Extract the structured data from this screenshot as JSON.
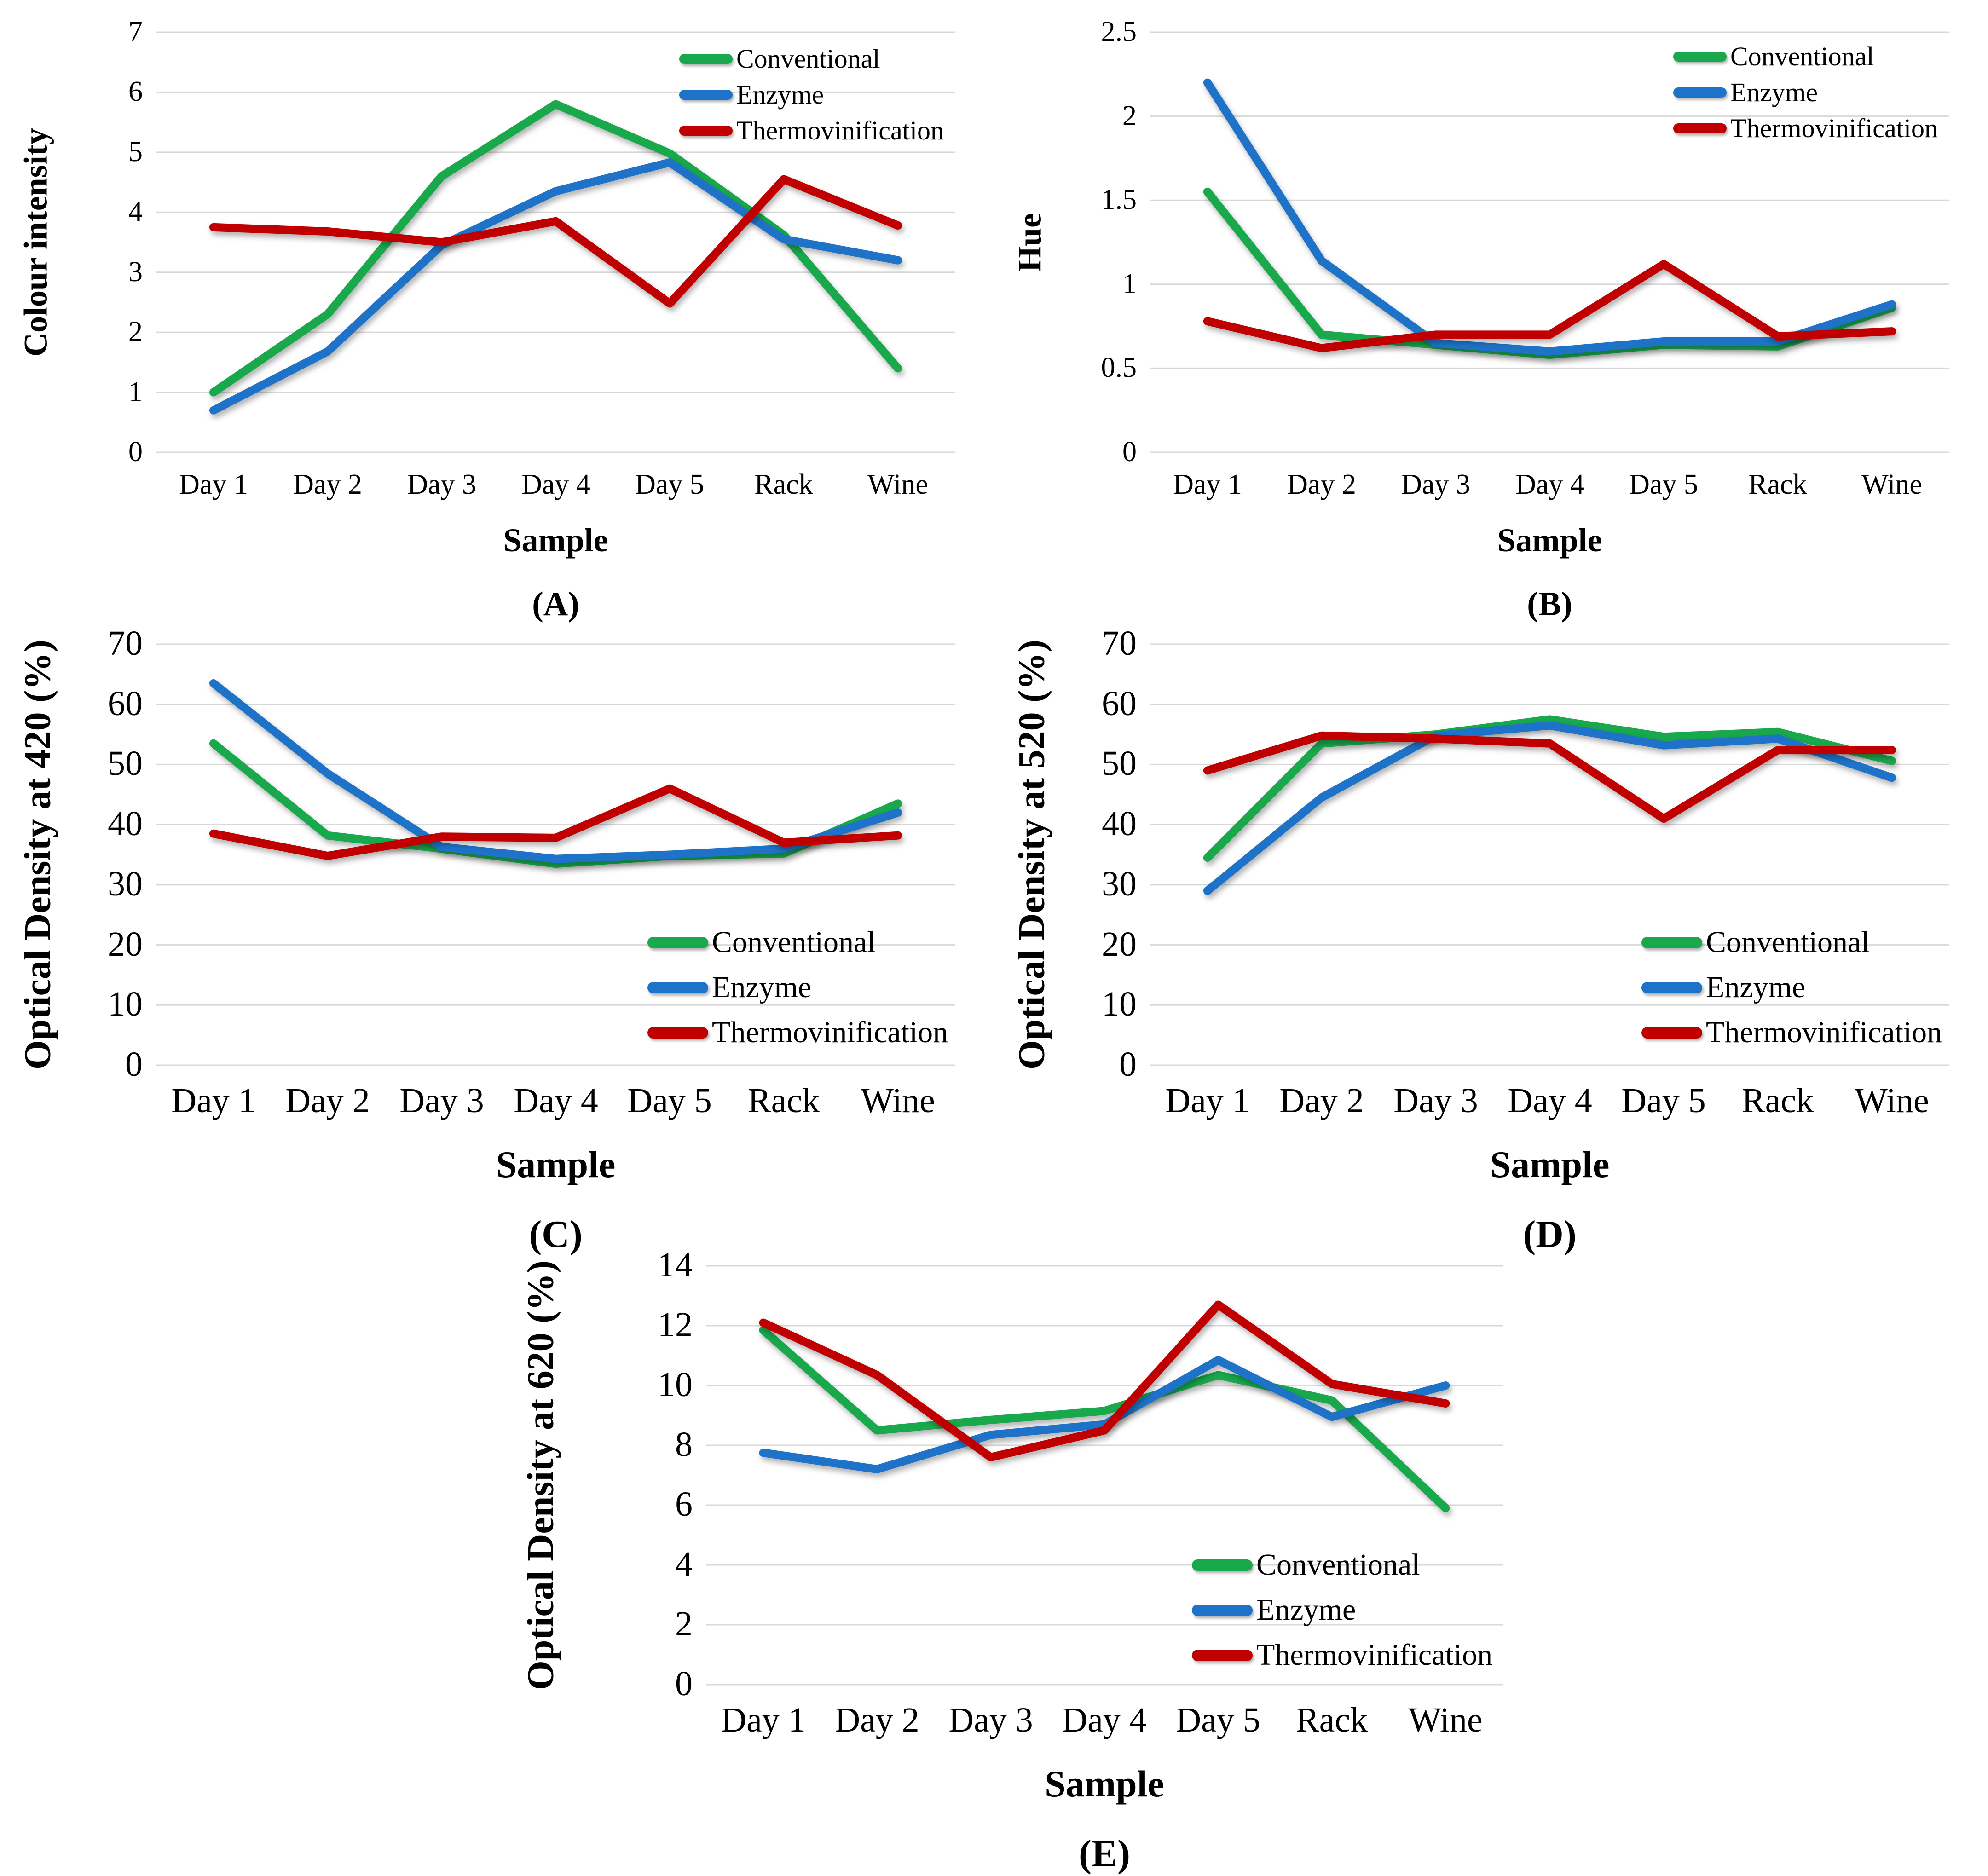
{
  "figure": {
    "type": "five-panel line figure",
    "background": "#ffffff",
    "panel_captions": [
      "(A)",
      "(B)",
      "(C)",
      "(D)",
      "(E)"
    ]
  },
  "colors": {
    "conventional": "#19A84C",
    "enzyme": "#1E73C8",
    "thermovinification": "#C00000",
    "gridline": "#D9D9D9",
    "text": "#000000"
  },
  "categories": [
    "Day 1",
    "Day 2",
    "Day 3",
    "Day 4",
    "Day 5",
    "Rack",
    "Wine"
  ],
  "x_axis_title": "Sample",
  "legend_labels": [
    "Conventional",
    "Enzyme",
    "Thermovinification"
  ],
  "chart_data": [
    {
      "id": "A",
      "type": "line",
      "caption": "(A)",
      "ylabel": "Colour intensity",
      "xlabel": "Sample",
      "ylim": [
        0,
        7
      ],
      "ystep": 1,
      "grid": true,
      "legend_position": "top-right",
      "series": [
        {
          "name": "Conventional",
          "color": "conventional",
          "values": [
            1.0,
            2.3,
            4.6,
            5.8,
            4.98,
            3.62,
            1.4
          ]
        },
        {
          "name": "Enzyme",
          "color": "enzyme",
          "values": [
            0.7,
            1.68,
            3.45,
            4.35,
            4.83,
            3.55,
            3.2
          ]
        },
        {
          "name": "Thermovinification",
          "color": "thermovinification",
          "values": [
            3.75,
            3.68,
            3.5,
            3.85,
            2.48,
            4.55,
            3.78
          ]
        }
      ]
    },
    {
      "id": "B",
      "type": "line",
      "caption": "(B)",
      "ylabel": "Hue",
      "xlabel": "Sample",
      "ylim": [
        0,
        2.5
      ],
      "ystep": 0.5,
      "grid": true,
      "legend_position": "top-right",
      "series": [
        {
          "name": "Conventional",
          "color": "conventional",
          "values": [
            1.55,
            0.7,
            0.64,
            0.58,
            0.64,
            0.63,
            0.86
          ]
        },
        {
          "name": "Enzyme",
          "color": "enzyme",
          "values": [
            2.2,
            1.14,
            0.65,
            0.6,
            0.66,
            0.66,
            0.88
          ]
        },
        {
          "name": "Thermovinification",
          "color": "thermovinification",
          "values": [
            0.78,
            0.62,
            0.7,
            0.7,
            1.12,
            0.69,
            0.72
          ]
        }
      ]
    },
    {
      "id": "C",
      "type": "line",
      "caption": "(C)",
      "ylabel": "Optical Density at 420 (%)",
      "xlabel": "Sample",
      "ylim": [
        0,
        70
      ],
      "ystep": 10,
      "grid": true,
      "legend_position": "bottom-right",
      "series": [
        {
          "name": "Conventional",
          "color": "conventional",
          "values": [
            53.5,
            38.2,
            36.0,
            33.5,
            34.8,
            35.2,
            43.5
          ]
        },
        {
          "name": "Enzyme",
          "color": "enzyme",
          "values": [
            63.5,
            48.5,
            36.3,
            34.3,
            35.0,
            36.0,
            42.0
          ]
        },
        {
          "name": "Thermovinification",
          "color": "thermovinification",
          "values": [
            38.5,
            34.8,
            38.0,
            37.8,
            46.0,
            37.0,
            38.2
          ]
        }
      ]
    },
    {
      "id": "D",
      "type": "line",
      "caption": "(D)",
      "ylabel": "Optical Density at 520 (%)",
      "xlabel": "Sample",
      "ylim": [
        0,
        70
      ],
      "ystep": 10,
      "grid": true,
      "legend_position": "bottom-right",
      "series": [
        {
          "name": "Conventional",
          "color": "conventional",
          "values": [
            34.5,
            53.5,
            55.0,
            57.5,
            54.6,
            55.4,
            50.6
          ]
        },
        {
          "name": "Enzyme",
          "color": "enzyme",
          "values": [
            29.0,
            44.5,
            54.8,
            56.5,
            53.2,
            54.3,
            47.8
          ]
        },
        {
          "name": "Thermovinification",
          "color": "thermovinification",
          "values": [
            49.0,
            54.8,
            54.3,
            53.5,
            41.0,
            52.4,
            52.4
          ]
        }
      ]
    },
    {
      "id": "E",
      "type": "line",
      "caption": "(E)",
      "ylabel": "Optical Density at 620 (%)",
      "xlabel": "Sample",
      "ylim": [
        0,
        14
      ],
      "ystep": 2,
      "grid": true,
      "legend_position": "bottom-right",
      "series": [
        {
          "name": "Conventional",
          "color": "conventional",
          "values": [
            11.85,
            8.5,
            8.85,
            9.15,
            10.35,
            9.5,
            5.9
          ]
        },
        {
          "name": "Enzyme",
          "color": "enzyme",
          "values": [
            7.75,
            7.2,
            8.35,
            8.7,
            10.85,
            8.95,
            10.0
          ]
        },
        {
          "name": "Thermovinification",
          "color": "thermovinification",
          "values": [
            12.1,
            10.35,
            7.6,
            8.5,
            12.7,
            10.05,
            9.4
          ]
        }
      ]
    }
  ]
}
